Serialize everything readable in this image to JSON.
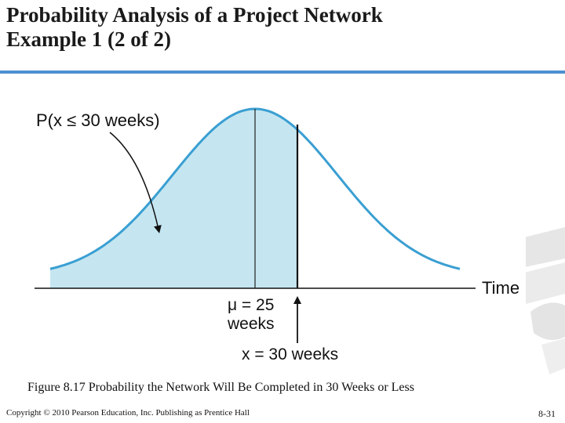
{
  "slide": {
    "title_line1": "Probability Analysis of a Project Network",
    "title_line2": "Example 1 (2 of 2)",
    "caption": "Figure 8.17   Probability the Network Will Be Completed in 30 Weeks or Less",
    "copyright": "Copyright © 2010 Pearson Education, Inc. Publishing as Prentice Hall",
    "page_number": "8-31"
  },
  "diagram": {
    "shaded_label": "P(x ≤ 30 weeks)",
    "axis_label": "Time",
    "mean_label_line1": "μ = 25",
    "mean_label_line2": "weeks",
    "x_label": "x = 30 weeks",
    "mean_weeks": 25,
    "cutoff_weeks": 30
  },
  "colors": {
    "curve": "#3a9fd2",
    "shade": "#c5e6f1",
    "accent_rule": "#4d8fd0"
  }
}
